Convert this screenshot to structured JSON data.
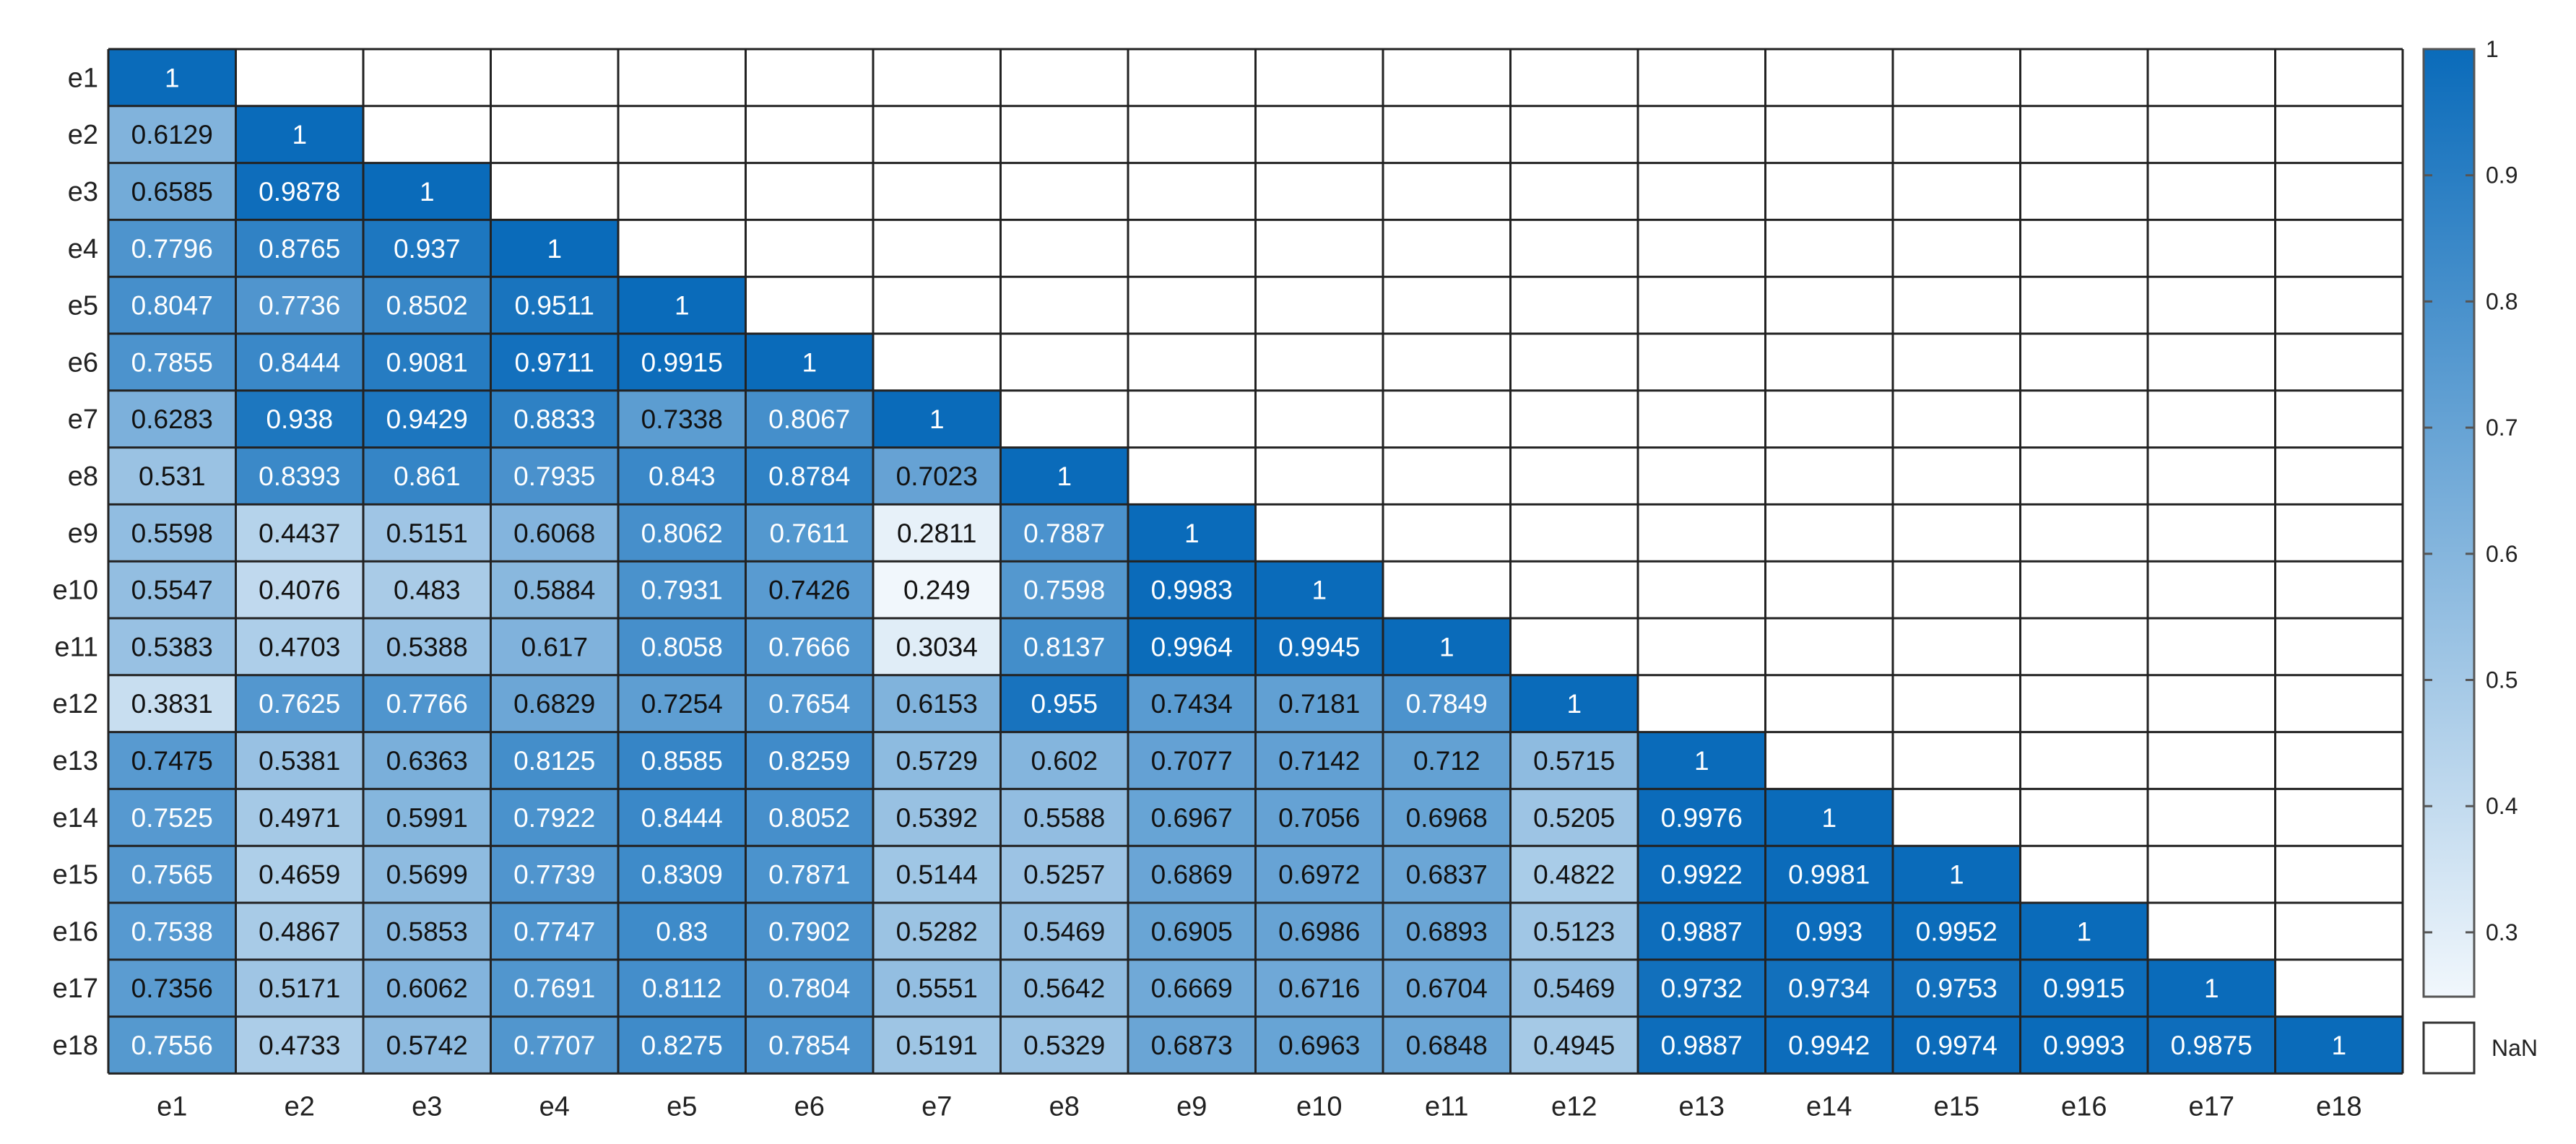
{
  "chart_data": {
    "type": "heatmap",
    "title": "",
    "xlabel": "",
    "ylabel": "",
    "triangle": "lower",
    "rows": [
      "e1",
      "e2",
      "e3",
      "e4",
      "e5",
      "e6",
      "e7",
      "e8",
      "e9",
      "e10",
      "e11",
      "e12",
      "e13",
      "e14",
      "e15",
      "e16",
      "e17",
      "e18"
    ],
    "columns": [
      "e1",
      "e2",
      "e3",
      "e4",
      "e5",
      "e6",
      "e7",
      "e8",
      "e9",
      "e10",
      "e11",
      "e12",
      "e13",
      "e14",
      "e15",
      "e16",
      "e17",
      "e18"
    ],
    "values": [
      [
        "1"
      ],
      [
        "0.6129",
        "1"
      ],
      [
        "0.6585",
        "0.9878",
        "1"
      ],
      [
        "0.7796",
        "0.8765",
        "0.937",
        "1"
      ],
      [
        "0.8047",
        "0.7736",
        "0.8502",
        "0.9511",
        "1"
      ],
      [
        "0.7855",
        "0.8444",
        "0.9081",
        "0.9711",
        "0.9915",
        "1"
      ],
      [
        "0.6283",
        "0.938",
        "0.9429",
        "0.8833",
        "0.7338",
        "0.8067",
        "1"
      ],
      [
        "0.531",
        "0.8393",
        "0.861",
        "0.7935",
        "0.843",
        "0.8784",
        "0.7023",
        "1"
      ],
      [
        "0.5598",
        "0.4437",
        "0.5151",
        "0.6068",
        "0.8062",
        "0.7611",
        "0.2811",
        "0.7887",
        "1"
      ],
      [
        "0.5547",
        "0.4076",
        "0.483",
        "0.5884",
        "0.7931",
        "0.7426",
        "0.249",
        "0.7598",
        "0.9983",
        "1"
      ],
      [
        "0.5383",
        "0.4703",
        "0.5388",
        "0.617",
        "0.8058",
        "0.7666",
        "0.3034",
        "0.8137",
        "0.9964",
        "0.9945",
        "1"
      ],
      [
        "0.3831",
        "0.7625",
        "0.7766",
        "0.6829",
        "0.7254",
        "0.7654",
        "0.6153",
        "0.955",
        "0.7434",
        "0.7181",
        "0.7849",
        "1"
      ],
      [
        "0.7475",
        "0.5381",
        "0.6363",
        "0.8125",
        "0.8585",
        "0.8259",
        "0.5729",
        "0.602",
        "0.7077",
        "0.7142",
        "0.712",
        "0.5715",
        "1"
      ],
      [
        "0.7525",
        "0.4971",
        "0.5991",
        "0.7922",
        "0.8444",
        "0.8052",
        "0.5392",
        "0.5588",
        "0.6967",
        "0.7056",
        "0.6968",
        "0.5205",
        "0.9976",
        "1"
      ],
      [
        "0.7565",
        "0.4659",
        "0.5699",
        "0.7739",
        "0.8309",
        "0.7871",
        "0.5144",
        "0.5257",
        "0.6869",
        "0.6972",
        "0.6837",
        "0.4822",
        "0.9922",
        "0.9981",
        "1"
      ],
      [
        "0.7538",
        "0.4867",
        "0.5853",
        "0.7747",
        "0.83",
        "0.7902",
        "0.5282",
        "0.5469",
        "0.6905",
        "0.6986",
        "0.6893",
        "0.5123",
        "0.9887",
        "0.993",
        "0.9952",
        "1"
      ],
      [
        "0.7356",
        "0.5171",
        "0.6062",
        "0.7691",
        "0.8112",
        "0.7804",
        "0.5551",
        "0.5642",
        "0.6669",
        "0.6716",
        "0.6704",
        "0.5469",
        "0.9732",
        "0.9734",
        "0.9753",
        "0.9915",
        "1"
      ],
      [
        "0.7556",
        "0.4733",
        "0.5742",
        "0.7707",
        "0.8275",
        "0.7854",
        "0.5191",
        "0.5329",
        "0.6873",
        "0.6963",
        "0.6848",
        "0.4945",
        "0.9887",
        "0.9942",
        "0.9974",
        "0.9993",
        "0.9875",
        "1"
      ]
    ],
    "colorbar": {
      "ticks": [
        "0.3",
        "0.4",
        "0.5",
        "0.6",
        "0.7",
        "0.8",
        "0.9",
        "1"
      ],
      "range": [
        0.249,
        1
      ],
      "low_color": "#f1f7fc",
      "high_color": "#0a6bba",
      "nan_label": "NaN",
      "nan_color": "#ffffff"
    },
    "grid": true,
    "colorbar_position": "right"
  }
}
